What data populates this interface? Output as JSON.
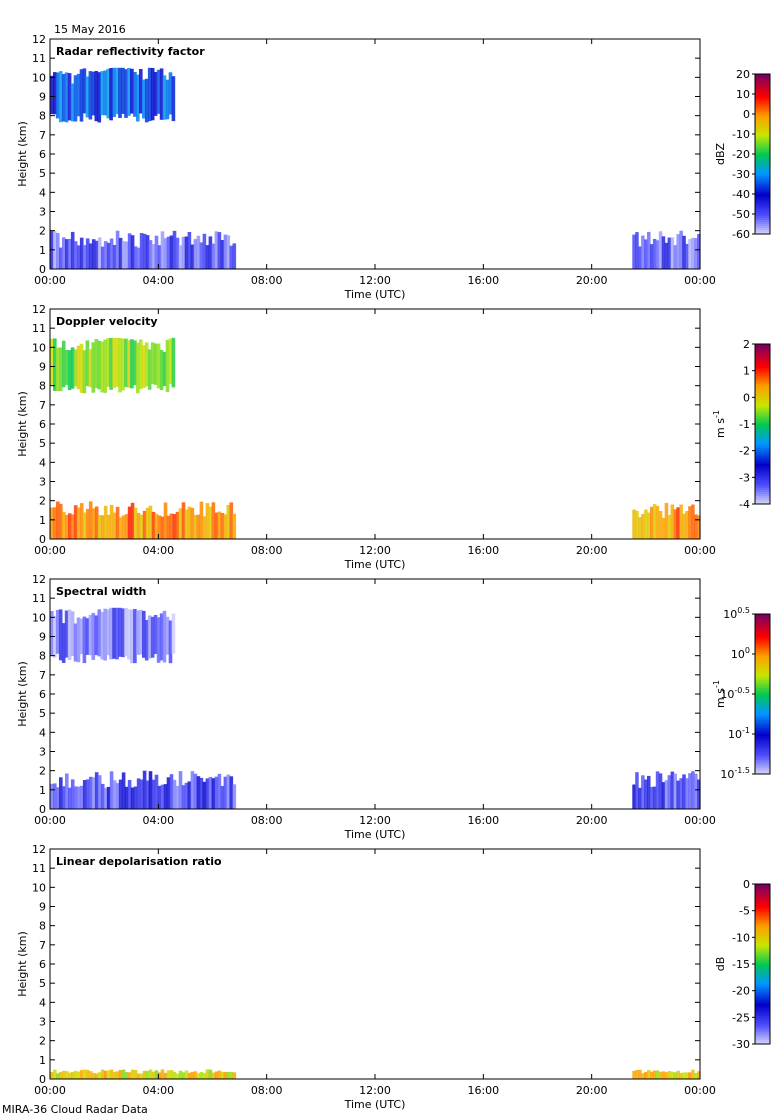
{
  "date_label": "15 May 2016",
  "footer_label": "MIRA-36 Cloud Radar Data",
  "chart_data": [
    {
      "type": "heatmap",
      "title": "Radar reflectivity factor",
      "xlabel": "Time (UTC)",
      "ylabel": "Height (km)",
      "x_ticks": [
        "00:00",
        "04:00",
        "08:00",
        "12:00",
        "16:00",
        "20:00",
        "00:00"
      ],
      "xlim_hours": [
        0,
        24
      ],
      "ylim": [
        0,
        12
      ],
      "y_ticks": [
        0,
        1,
        2,
        3,
        4,
        5,
        6,
        7,
        8,
        9,
        10,
        11,
        12
      ],
      "colorbar_unit": "dBZ",
      "colorbar_ticks": [
        "20",
        "10",
        "0",
        "-10",
        "-20",
        "-30",
        "-40",
        "-50",
        "-60"
      ],
      "colorbar_range": [
        -60,
        20
      ],
      "features": [
        {
          "name": "high cloud",
          "t_start": 0.0,
          "t_end": 4.6,
          "h_bottom": 7.6,
          "h_top": 10.5,
          "value": -35
        },
        {
          "name": "boundary layer clutter",
          "t_start": 0.0,
          "t_end": 6.85,
          "h_bottom": 0.0,
          "h_top": 2.0,
          "value": -50
        },
        {
          "name": "boundary layer clutter",
          "t_start": 21.5,
          "t_end": 24.0,
          "h_bottom": 0.0,
          "h_top": 2.0,
          "value": -50
        }
      ]
    },
    {
      "type": "heatmap",
      "title": "Doppler velocity",
      "xlabel": "Time (UTC)",
      "ylabel": "Height (km)",
      "x_ticks": [
        "00:00",
        "04:00",
        "08:00",
        "12:00",
        "16:00",
        "20:00",
        "00:00"
      ],
      "xlim_hours": [
        0,
        24
      ],
      "ylim": [
        0,
        12
      ],
      "y_ticks": [
        0,
        1,
        2,
        3,
        4,
        5,
        6,
        7,
        8,
        9,
        10,
        11,
        12
      ],
      "colorbar_unit": "m s-1",
      "colorbar_ticks": [
        "2",
        "1",
        "0",
        "-1",
        "-2",
        "-3",
        "-4"
      ],
      "colorbar_range": [
        -4,
        2
      ],
      "features": [
        {
          "name": "high cloud",
          "t_start": 0.0,
          "t_end": 4.6,
          "h_bottom": 7.6,
          "h_top": 10.5,
          "value": -0.5
        },
        {
          "name": "boundary layer",
          "t_start": 0.0,
          "t_end": 6.85,
          "h_bottom": 0.0,
          "h_top": 2.0,
          "value": 0.5
        },
        {
          "name": "boundary layer",
          "t_start": 21.5,
          "t_end": 24.0,
          "h_bottom": 0.0,
          "h_top": 2.0,
          "value": 0.5
        }
      ]
    },
    {
      "type": "heatmap",
      "title": "Spectral width",
      "xlabel": "Time (UTC)",
      "ylabel": "Height (km)",
      "x_ticks": [
        "00:00",
        "04:00",
        "08:00",
        "12:00",
        "16:00",
        "20:00",
        "00:00"
      ],
      "xlim_hours": [
        0,
        24
      ],
      "ylim": [
        0,
        12
      ],
      "y_ticks": [
        0,
        1,
        2,
        3,
        4,
        5,
        6,
        7,
        8,
        9,
        10,
        11,
        12
      ],
      "colorbar_unit": "m s-1",
      "colorbar_scale": "log",
      "colorbar_ticks": [
        "10^0.5",
        "10^0",
        "10^-0.5",
        "10^-1",
        "10^-1.5"
      ],
      "colorbar_range": [
        -1.5,
        0.5
      ],
      "features": [
        {
          "name": "high cloud",
          "t_start": 0.0,
          "t_end": 4.6,
          "h_bottom": 7.6,
          "h_top": 10.5,
          "value": -1.3
        },
        {
          "name": "boundary layer",
          "t_start": 0.0,
          "t_end": 6.85,
          "h_bottom": 0.0,
          "h_top": 2.0,
          "value": -1.2
        },
        {
          "name": "boundary layer",
          "t_start": 21.5,
          "t_end": 24.0,
          "h_bottom": 0.0,
          "h_top": 2.0,
          "value": -1.2
        }
      ]
    },
    {
      "type": "heatmap",
      "title": "Linear depolarisation ratio",
      "xlabel": "Time (UTC)",
      "ylabel": "Height (km)",
      "x_ticks": [
        "00:00",
        "04:00",
        "08:00",
        "12:00",
        "16:00",
        "20:00",
        "00:00"
      ],
      "xlim_hours": [
        0,
        24
      ],
      "ylim": [
        0,
        12
      ],
      "y_ticks": [
        0,
        1,
        2,
        3,
        4,
        5,
        6,
        7,
        8,
        9,
        10,
        11,
        12
      ],
      "colorbar_unit": "dB",
      "colorbar_ticks": [
        "0",
        "-5",
        "-10",
        "-15",
        "-20",
        "-25",
        "-30"
      ],
      "colorbar_range": [
        -30,
        0
      ],
      "features": [
        {
          "name": "surface layer",
          "t_start": 0.0,
          "t_end": 6.85,
          "h_bottom": 0.0,
          "h_top": 0.5,
          "value": -10
        },
        {
          "name": "surface layer",
          "t_start": 21.5,
          "t_end": 24.0,
          "h_bottom": 0.0,
          "h_top": 0.5,
          "value": -10
        }
      ]
    }
  ]
}
